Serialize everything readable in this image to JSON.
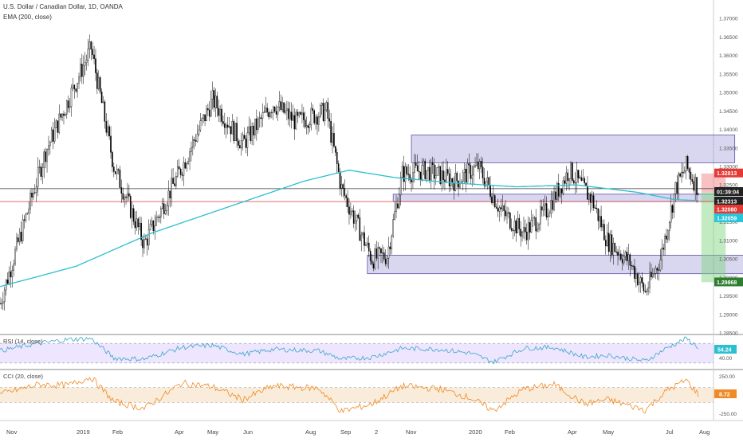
{
  "header": {
    "symbol": "U.S. Dollar / Canadian Dollar, 1D, OANDA",
    "indicator": "EMA (200, close)"
  },
  "chart_data": [
    {
      "type": "candlestick",
      "title": "U.S. Dollar / Canadian Dollar, 1D, OANDA",
      "overlay": "EMA (200, close)",
      "ylim": [
        1.285,
        1.375
      ],
      "y_ticks": [
        "1.37000",
        "1.36500",
        "1.36000",
        "1.35500",
        "1.35000",
        "1.34500",
        "1.34000",
        "1.33500",
        "1.33000",
        "1.32500",
        "1.32000",
        "1.31500",
        "1.31000",
        "1.30500",
        "1.30000",
        "1.29500",
        "1.29000",
        "1.28500"
      ],
      "x_ticks": [
        "Nov",
        "2019",
        "Feb",
        "Apr",
        "May",
        "Jun",
        "Aug",
        "Sep",
        "2",
        "Nov",
        "2020",
        "Feb",
        "Apr",
        "May",
        "Jul",
        "Aug"
      ],
      "close_anchors": [
        [
          0,
          1.293
        ],
        [
          30,
          1.334
        ],
        [
          60,
          1.362
        ],
        [
          75,
          1.33
        ],
        [
          95,
          1.309
        ],
        [
          120,
          1.33
        ],
        [
          140,
          1.348
        ],
        [
          160,
          1.336
        ],
        [
          180,
          1.347
        ],
        [
          195,
          1.342
        ],
        [
          215,
          1.345
        ],
        [
          225,
          1.324
        ],
        [
          245,
          1.305
        ],
        [
          255,
          1.306
        ],
        [
          265,
          1.328
        ],
        [
          280,
          1.329
        ],
        [
          300,
          1.326
        ],
        [
          315,
          1.33
        ],
        [
          330,
          1.318
        ],
        [
          345,
          1.312
        ],
        [
          360,
          1.318
        ],
        [
          375,
          1.329
        ],
        [
          390,
          1.321
        ],
        [
          400,
          1.31
        ],
        [
          415,
          1.304
        ],
        [
          425,
          1.296
        ],
        [
          435,
          1.305
        ],
        [
          445,
          1.324
        ],
        [
          452,
          1.33
        ],
        [
          460,
          1.324
        ]
      ],
      "ema_anchors": [
        [
          0,
          1.2975
        ],
        [
          50,
          1.303
        ],
        [
          100,
          1.312
        ],
        [
          150,
          1.319
        ],
        [
          200,
          1.326
        ],
        [
          230,
          1.329
        ],
        [
          260,
          1.327
        ],
        [
          300,
          1.3255
        ],
        [
          340,
          1.3245
        ],
        [
          380,
          1.325
        ],
        [
          420,
          1.323
        ],
        [
          445,
          1.321
        ],
        [
          460,
          1.3208
        ]
      ],
      "zones": [
        {
          "x0": 271,
          "x1": 484,
          "y0": 1.331,
          "y1": 1.3385
        },
        {
          "x0": 259,
          "x1": 555,
          "y0": 1.3205,
          "y1": 1.3225
        },
        {
          "x0": 242,
          "x1": 509,
          "y0": 1.301,
          "y1": 1.306
        }
      ],
      "position": {
        "entry": 1.323,
        "stop": 1.3281,
        "target": 1.2987
      },
      "price_lines": [
        {
          "value": 1.324,
          "color": "#333333"
        },
        {
          "value": 1.3205,
          "color": "#e53935"
        }
      ],
      "price_labels": [
        {
          "value": 1.32813,
          "text": "1.32813",
          "bg": "#e53935"
        },
        {
          "value": 1.324,
          "text": "01:39:04",
          "bg": "#222222"
        },
        {
          "value": 1.32313,
          "text": "1.32313",
          "bg": "#222222"
        },
        {
          "value": 1.3208,
          "text": "1.32080",
          "bg": "#e53935"
        },
        {
          "value": 1.32059,
          "text": "1.32059",
          "bg": "#26c6da"
        },
        {
          "value": 1.29868,
          "text": "1.29868",
          "bg": "#2e7d32"
        }
      ]
    },
    {
      "type": "line",
      "title": "RSI (14, close)",
      "ylim": [
        20,
        85
      ],
      "band": [
        30,
        70
      ],
      "y_ticks": [
        "40.00"
      ],
      "last_label": "54.24",
      "anchors": [
        [
          0,
          55
        ],
        [
          25,
          70
        ],
        [
          45,
          78
        ],
        [
          60,
          80
        ],
        [
          75,
          40
        ],
        [
          95,
          38
        ],
        [
          120,
          62
        ],
        [
          140,
          66
        ],
        [
          160,
          48
        ],
        [
          180,
          58
        ],
        [
          210,
          55
        ],
        [
          225,
          38
        ],
        [
          245,
          42
        ],
        [
          265,
          60
        ],
        [
          290,
          58
        ],
        [
          310,
          50
        ],
        [
          325,
          32
        ],
        [
          345,
          60
        ],
        [
          365,
          62
        ],
        [
          385,
          42
        ],
        [
          400,
          46
        ],
        [
          425,
          34
        ],
        [
          440,
          62
        ],
        [
          452,
          80
        ],
        [
          460,
          62
        ]
      ]
    },
    {
      "type": "line",
      "title": "CCI (20, close)",
      "ylim": [
        -320,
        320
      ],
      "band": [
        -100,
        100
      ],
      "y_ticks": [
        "250.00",
        "-250.00"
      ],
      "last_label": "8.72",
      "anchors": [
        [
          0,
          10
        ],
        [
          25,
          140
        ],
        [
          45,
          130
        ],
        [
          60,
          240
        ],
        [
          75,
          -90
        ],
        [
          95,
          -180
        ],
        [
          120,
          160
        ],
        [
          140,
          110
        ],
        [
          160,
          -60
        ],
        [
          180,
          120
        ],
        [
          210,
          90
        ],
        [
          225,
          -220
        ],
        [
          245,
          -120
        ],
        [
          265,
          120
        ],
        [
          290,
          80
        ],
        [
          310,
          -40
        ],
        [
          325,
          -210
        ],
        [
          345,
          80
        ],
        [
          365,
          140
        ],
        [
          385,
          -120
        ],
        [
          400,
          -60
        ],
        [
          425,
          -200
        ],
        [
          440,
          70
        ],
        [
          452,
          200
        ],
        [
          460,
          10
        ]
      ]
    }
  ]
}
